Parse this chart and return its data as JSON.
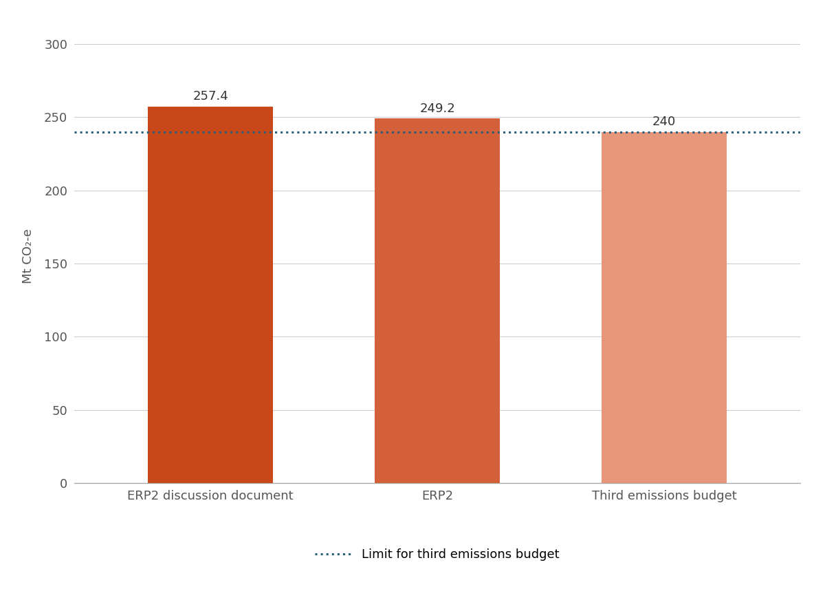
{
  "categories": [
    "ERP2 discussion document",
    "ERP2",
    "Third emissions budget"
  ],
  "values": [
    257.4,
    249.2,
    240
  ],
  "bar_colors": [
    "#C8481A",
    "#D4603A",
    "#E8967A"
  ],
  "bar_labels": [
    "257.4",
    "249.2",
    "240"
  ],
  "limit_value": 240,
  "limit_label": "Limit for third emissions budget",
  "limit_color": "#2B5F7A",
  "ylabel": "Mt CO₂-e",
  "ylim": [
    0,
    310
  ],
  "yticks": [
    0,
    50,
    100,
    150,
    200,
    250,
    300
  ],
  "bar_width": 0.55,
  "background_color": "#ffffff",
  "grid_color": "#cccccc",
  "label_fontsize": 13,
  "tick_fontsize": 13,
  "ylabel_fontsize": 13,
  "annotation_fontsize": 13,
  "legend_fontsize": 13
}
